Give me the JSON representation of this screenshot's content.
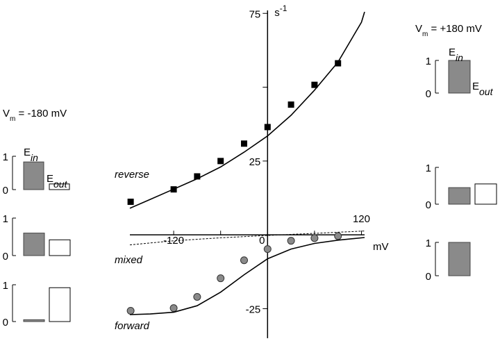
{
  "chart_data": [
    {
      "type": "line",
      "xlabel": "mV",
      "ylabel": [
        "s",
        "-1"
      ],
      "xlim": [
        -176,
        124
      ],
      "ylim": [
        -35,
        76
      ],
      "xticks": [
        -120,
        0,
        120
      ],
      "xminor": [
        -60,
        60
      ],
      "yticks": [
        -25,
        25,
        75
      ],
      "yminor": [
        50
      ],
      "annotations": [
        "reverse",
        "mixed",
        "forward"
      ],
      "series": [
        {
          "marker": "square",
          "color": "#000000",
          "x": [
            -175,
            -120,
            -90,
            -60,
            -30,
            0,
            30,
            60,
            90
          ],
          "values": [
            11.2,
            15.4,
            19.8,
            25.0,
            30.9,
            36.5,
            44.1,
            50.8,
            58.1
          ]
        },
        {
          "marker": "circle",
          "color": "#8a8a8a",
          "x": [
            -175,
            -120,
            -90,
            -60,
            -30,
            0,
            30,
            60,
            90
          ],
          "values": [
            -25.7,
            -24.8,
            -21.0,
            -14.7,
            -8.6,
            -4.8,
            -2.0,
            -1.1,
            -0.4
          ]
        },
        {
          "color": "#000000",
          "dash": false,
          "x": [
            -176,
            -150,
            -120,
            -90,
            -60,
            -30,
            0,
            30,
            60,
            90,
            120,
            124
          ],
          "values": [
            9,
            12,
            15.5,
            19,
            23,
            28,
            33.5,
            40.5,
            49,
            58.5,
            72,
            75.5
          ]
        },
        {
          "color": "#000000",
          "dash": true,
          "x": [
            -176,
            -120,
            -60,
            0,
            60,
            124
          ],
          "values": [
            -3.4,
            -2,
            -1,
            -0.2,
            0.5,
            1.3
          ]
        },
        {
          "color": "#000000",
          "dash": false,
          "x": [
            -176,
            -150,
            -120,
            -90,
            -60,
            -30,
            0,
            30,
            60,
            90,
            124
          ],
          "values": [
            -27,
            -26.8,
            -26.2,
            -24,
            -19.4,
            -13.5,
            -8.1,
            -4.8,
            -2.9,
            -1.8,
            -0.9
          ]
        }
      ]
    },
    {
      "type": "bar",
      "title": [
        "V",
        "m",
        " = -180 mV"
      ],
      "categories": [
        [
          "E",
          "in"
        ],
        [
          "E",
          "out"
        ]
      ],
      "values": [
        0.83,
        0.17
      ],
      "colors": [
        "#8a8a8a",
        "#ffffff"
      ],
      "ylim": [
        0,
        1
      ],
      "yticks": [
        0,
        1
      ]
    },
    {
      "type": "bar",
      "values": [
        0.6,
        0.42
      ],
      "colors": [
        "#8a8a8a",
        "#ffffff"
      ],
      "ylim": [
        0,
        1
      ],
      "yticks": [
        0,
        1
      ]
    },
    {
      "type": "bar",
      "values": [
        0.05,
        0.92
      ],
      "colors": [
        "#8a8a8a",
        "#ffffff"
      ],
      "ylim": [
        0,
        1
      ],
      "yticks": [
        0,
        1
      ]
    },
    {
      "type": "bar",
      "title": [
        "V",
        "m",
        " = +180 mV"
      ],
      "categories": [
        [
          "E",
          "in"
        ],
        [
          "E",
          "out"
        ]
      ],
      "values": [
        1.0,
        0
      ],
      "colors": [
        "#8a8a8a",
        "#ffffff"
      ],
      "ylim": [
        0,
        1
      ],
      "yticks": [
        0,
        1
      ]
    },
    {
      "type": "bar",
      "values": [
        0.45,
        0.55
      ],
      "colors": [
        "#8a8a8a",
        "#ffffff"
      ],
      "ylim": [
        0,
        1
      ],
      "yticks": [
        0,
        1
      ]
    },
    {
      "type": "bar",
      "values": [
        1.0,
        0
      ],
      "colors": [
        "#8a8a8a",
        "#ffffff"
      ],
      "ylim": [
        0,
        1
      ],
      "yticks": [
        0,
        1
      ]
    }
  ]
}
